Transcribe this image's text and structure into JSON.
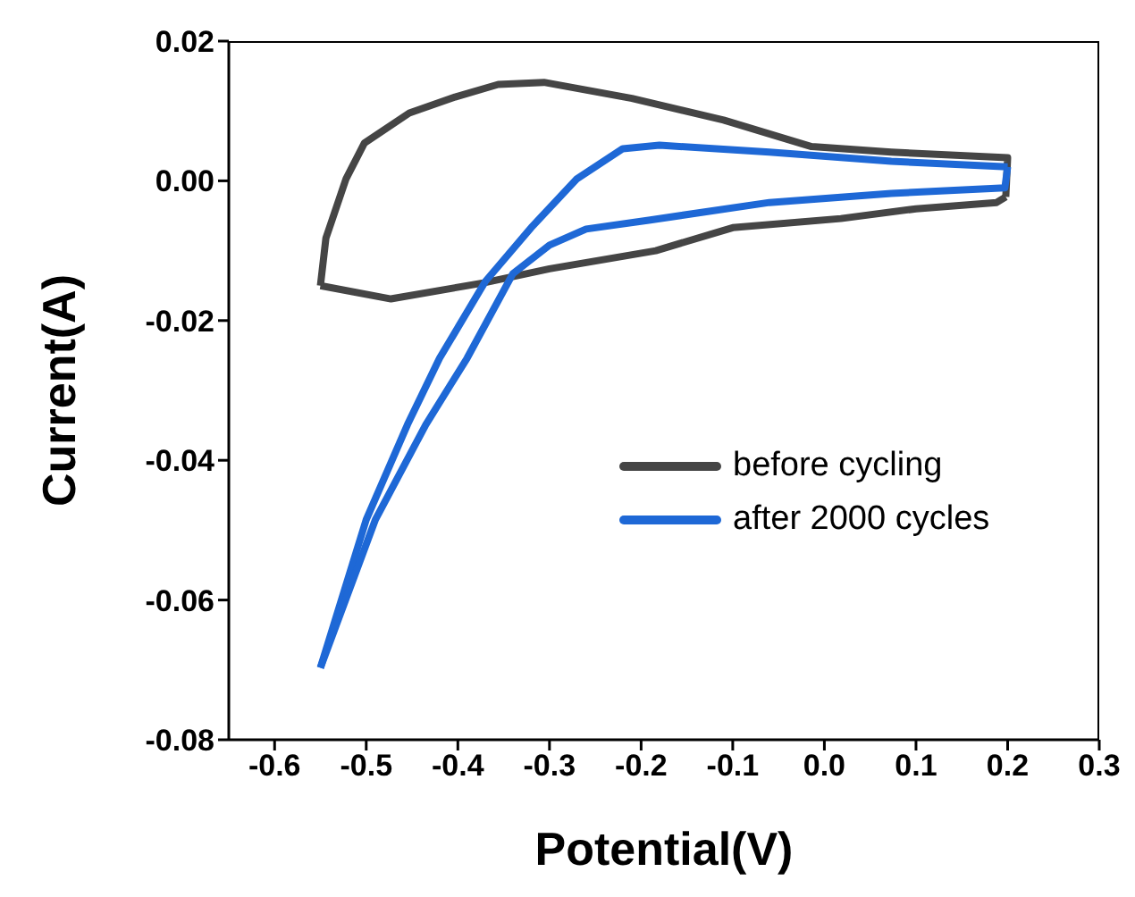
{
  "chart_data": {
    "type": "line",
    "xlabel": "Potential(V)",
    "ylabel": "Current(A)",
    "xlim": [
      -0.65,
      0.3
    ],
    "xticks": [
      -0.6,
      -0.5,
      -0.4,
      -0.3,
      -0.2,
      -0.1,
      {
        "value": 0,
        "label": "0.0"
      },
      0.1,
      0.2,
      0.3
    ],
    "ylim": [
      -0.08,
      0.02
    ],
    "yticks": [
      -0.08,
      -0.06,
      -0.04,
      -0.02,
      {
        "value": 0,
        "label": "0.00"
      },
      0.02
    ],
    "grid": false,
    "legend": "right",
    "marker": "none",
    "line_style": "solid",
    "series": [
      {
        "name": "before cycling",
        "color": "#454545",
        "x": [
          -0.55,
          -0.473,
          -0.372,
          -0.3,
          -0.184,
          -0.1,
          0.018,
          0.1,
          0.188,
          0.198
        ],
        "values": [
          -0.015,
          -0.0169,
          -0.0146,
          -0.0126,
          -0.01,
          -0.0067,
          -0.0054,
          -0.004,
          -0.0031,
          -0.0023
        ]
      },
      {
        "color": "#454545",
        "x": [
          0.198,
          0.2,
          0.073,
          -0.014,
          -0.11,
          -0.21,
          -0.306,
          -0.356,
          -0.403,
          -0.453,
          -0.502,
          -0.522,
          -0.544,
          -0.55
        ],
        "values": [
          -0.0023,
          0.0033,
          0.0041,
          0.0049,
          0.0087,
          0.0118,
          0.0141,
          0.0138,
          0.012,
          0.0097,
          0.0054,
          0.0003,
          -0.0082,
          -0.015
        ]
      },
      {
        "name": "after 2000 cycles",
        "color": "#1e68d6",
        "x": [
          -0.55,
          -0.5,
          -0.455,
          -0.42,
          -0.37,
          -0.32,
          -0.27,
          -0.22,
          -0.18,
          -0.06,
          0.073,
          0.2
        ],
        "values": [
          -0.0697,
          -0.0485,
          -0.0349,
          -0.0254,
          -0.0144,
          -0.0067,
          0.0003,
          0.0046,
          0.0051,
          0.0041,
          0.0028,
          0.002
        ]
      },
      {
        "color": "#1e68d6",
        "x": [
          0.2,
          0.197,
          0.073,
          -0.06,
          -0.19,
          -0.26,
          -0.3,
          -0.34,
          -0.39,
          -0.435,
          -0.49,
          -0.55
        ],
        "values": [
          0.002,
          -0.001,
          -0.0018,
          -0.0031,
          -0.0056,
          -0.0069,
          -0.0092,
          -0.0133,
          -0.0254,
          -0.0349,
          -0.0485,
          -0.0697
        ]
      }
    ]
  }
}
